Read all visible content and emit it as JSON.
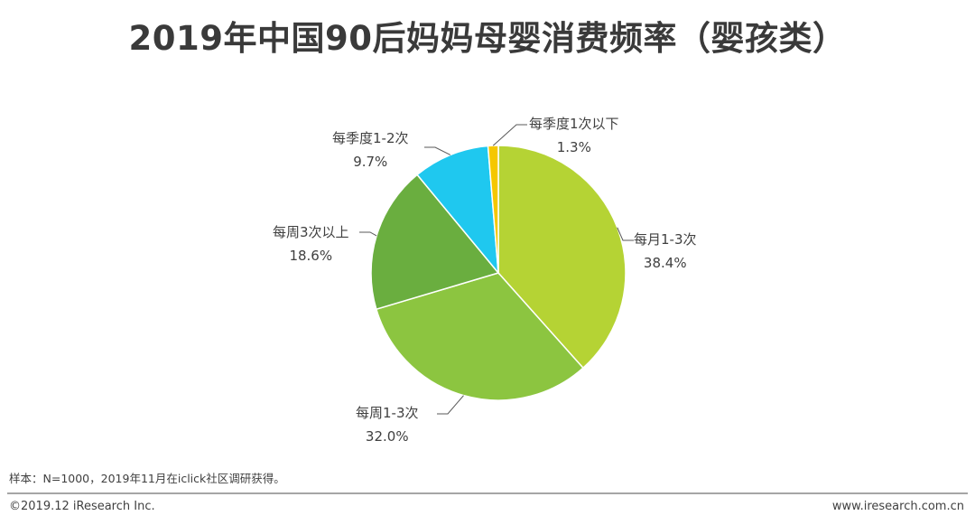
{
  "title": "2019年中国90后妈妈母婴消费频率（婴孩类）",
  "chart_data": {
    "type": "pie",
    "title": "2019年中国90后妈妈母婴消费频率（婴孩类）",
    "slices": [
      {
        "label": "每月1-3次",
        "value": 38.4,
        "display": "38.4%",
        "color": "#b5d334"
      },
      {
        "label": "每周1-3次",
        "value": 32.0,
        "display": "32.0%",
        "color": "#8cc540"
      },
      {
        "label": "每周3次以上",
        "value": 18.6,
        "display": "18.6%",
        "color": "#6aae3f"
      },
      {
        "label": "每季度1-2次",
        "value": 9.7,
        "display": "9.7%",
        "color": "#1fc8ef"
      },
      {
        "label": "每季度1次以下",
        "value": 1.3,
        "display": "1.3%",
        "color": "#f5c700"
      }
    ]
  },
  "note": "样本：N=1000，2019年11月在iclick社区调研获得。",
  "footer": {
    "copyright": "©2019.12 iResearch Inc.",
    "website": "www.iresearch.com.cn"
  }
}
